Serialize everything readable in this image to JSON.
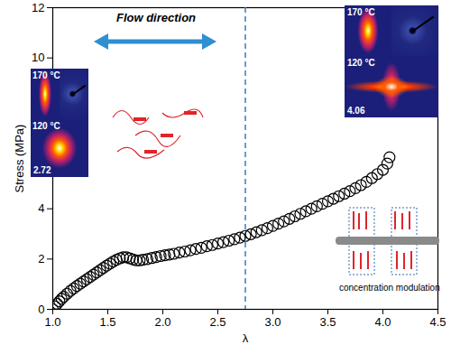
{
  "chart_data": {
    "type": "scatter",
    "xlabel": "λ",
    "ylabel": "Stress (MPa)",
    "x": [
      1.0,
      1.02,
      1.04,
      1.06,
      1.08,
      1.1,
      1.13,
      1.16,
      1.19,
      1.22,
      1.25,
      1.28,
      1.31,
      1.34,
      1.37,
      1.4,
      1.43,
      1.46,
      1.49,
      1.52,
      1.55,
      1.58,
      1.61,
      1.64,
      1.67,
      1.7,
      1.73,
      1.76,
      1.79,
      1.82,
      1.86,
      1.9,
      1.94,
      1.98,
      2.02,
      2.06,
      2.1,
      2.15,
      2.2,
      2.25,
      2.3,
      2.35,
      2.4,
      2.45,
      2.5,
      2.55,
      2.6,
      2.65,
      2.7,
      2.75,
      2.8,
      2.85,
      2.9,
      2.95,
      3.0,
      3.05,
      3.1,
      3.15,
      3.2,
      3.25,
      3.3,
      3.35,
      3.4,
      3.45,
      3.5,
      3.55,
      3.6,
      3.65,
      3.7,
      3.75,
      3.8,
      3.85,
      3.9,
      3.95,
      4.0,
      4.04,
      4.06
    ],
    "values": [
      0.0,
      0.12,
      0.22,
      0.32,
      0.42,
      0.5,
      0.62,
      0.73,
      0.83,
      0.93,
      1.02,
      1.11,
      1.2,
      1.29,
      1.38,
      1.47,
      1.56,
      1.65,
      1.74,
      1.82,
      1.9,
      1.97,
      2.03,
      2.07,
      2.07,
      2.03,
      1.98,
      1.95,
      1.95,
      1.97,
      2.0,
      2.04,
      2.08,
      2.12,
      2.15,
      2.18,
      2.21,
      2.26,
      2.3,
      2.35,
      2.4,
      2.45,
      2.51,
      2.56,
      2.62,
      2.67,
      2.73,
      2.79,
      2.85,
      2.92,
      2.99,
      3.07,
      3.15,
      3.23,
      3.32,
      3.41,
      3.5,
      3.6,
      3.7,
      3.8,
      3.9,
      4.0,
      4.1,
      4.2,
      4.3,
      4.4,
      4.5,
      4.6,
      4.7,
      4.82,
      4.94,
      5.07,
      5.22,
      5.38,
      5.55,
      5.8,
      6.05
    ],
    "color": "#000000",
    "marker": "open_circle",
    "xlim": [
      1.0,
      4.5
    ],
    "xticks": [
      {
        "value": 1,
        "label": "1.0"
      },
      1.5,
      {
        "value": 2,
        "label": "2.0"
      },
      2.5,
      {
        "value": 3,
        "label": "3.0"
      },
      3.5,
      {
        "value": 4,
        "label": "4.0"
      },
      4.5
    ],
    "ylim": [
      0,
      12
    ],
    "yticks": [
      0,
      2,
      4,
      6,
      8,
      10,
      12
    ],
    "grid": false,
    "vline": {
      "x": 2.75,
      "color": "#3a7bbf",
      "line_style": "dashed"
    },
    "annotations": {
      "flow": "Flow direction",
      "insets": [
        {
          "top": "170 °C",
          "bottom": "120 °C",
          "lambda": 2.72
        },
        {
          "top": "170 °C",
          "bottom": "120 °C",
          "lambda": 4.06
        }
      ],
      "note": "concentration modulation"
    }
  }
}
